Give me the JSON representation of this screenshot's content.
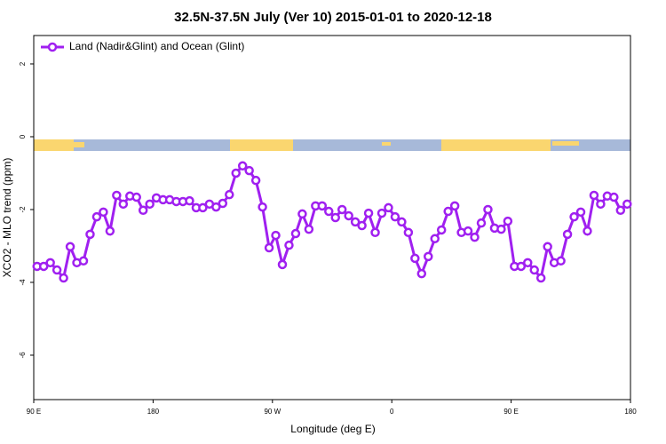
{
  "chart_data": {
    "type": "line",
    "title": "32.5N-37.5N July (Ver 10)   2015-01-01 to 2020-12-18",
    "x_label": "Longitude (deg E)",
    "y_label": "XCO2 - MLO trend (ppm)",
    "xlim": [
      90,
      540
    ],
    "xticks": [
      {
        "value": 90,
        "label": "90 E"
      },
      {
        "value": 180,
        "label": "180"
      },
      {
        "value": 270,
        "label": "90 W"
      },
      {
        "value": 360,
        "label": "0"
      },
      {
        "value": 450,
        "label": "90 E"
      },
      {
        "value": 540,
        "label": "180"
      }
    ],
    "ylim": [
      -7.22,
      2.78
    ],
    "yticks": [
      2,
      0,
      -2,
      -4,
      -6
    ],
    "legend": "top-left",
    "x": [
      92.5,
      97.5,
      102.5,
      107.5,
      112.5,
      117.5,
      122.5,
      127.5,
      132.5,
      137.5,
      142.5,
      147.5,
      152.5,
      157.5,
      162.5,
      167.5,
      172.5,
      177.5,
      182.5,
      187.5,
      192.5,
      197.5,
      202.5,
      207.5,
      212.5,
      217.5,
      222.5,
      227.5,
      232.5,
      237.5,
      242.5,
      247.5,
      252.5,
      257.5,
      262.5,
      267.5,
      272.5,
      277.5,
      282.5,
      287.5,
      292.5,
      297.5,
      302.5,
      307.5,
      312.5,
      317.5,
      322.5,
      327.5,
      332.5,
      337.5,
      342.5,
      347.5,
      352.5,
      357.5,
      362.5,
      367.5,
      372.5,
      377.5,
      382.5,
      387.5,
      392.5,
      397.5,
      402.5,
      407.5,
      412.5,
      417.5,
      422.5,
      427.5,
      432.5,
      437.5,
      442.5,
      447.5,
      452.5,
      457.5,
      462.5,
      467.5,
      472.5,
      477.5,
      482.5,
      487.5,
      492.5,
      497.5,
      502.5,
      507.5,
      512.5,
      517.5,
      522.5,
      527.5,
      532.5,
      537.5
    ],
    "series": [
      {
        "name": "Land (Nadir&Glint) and Ocean (Glint)",
        "color": "#a020f0",
        "values": [
          -3.56,
          -3.56,
          -3.46,
          -3.66,
          -3.88,
          -3.02,
          -3.46,
          -3.41,
          -2.68,
          -2.2,
          -2.07,
          -2.59,
          -1.61,
          -1.85,
          -1.63,
          -1.66,
          -2.02,
          -1.85,
          -1.68,
          -1.73,
          -1.73,
          -1.78,
          -1.78,
          -1.76,
          -1.95,
          -1.95,
          -1.85,
          -1.93,
          -1.83,
          -1.59,
          -1.0,
          -0.8,
          -0.93,
          -1.2,
          -1.93,
          -3.05,
          -2.71,
          -3.51,
          -2.98,
          -2.66,
          -2.12,
          -2.54,
          -1.9,
          -1.9,
          -2.05,
          -2.22,
          -2.0,
          -2.17,
          -2.34,
          -2.44,
          -2.1,
          -2.63,
          -2.1,
          -1.95,
          -2.2,
          -2.34,
          -2.63,
          -3.34,
          -3.76,
          -3.29,
          -2.8,
          -2.56,
          -2.05,
          -1.9,
          -2.63,
          -2.59,
          -2.76,
          -2.37,
          -2.0,
          -2.51,
          -2.54,
          -2.32,
          -3.56,
          -3.56,
          -3.46,
          -3.66,
          -3.88,
          -3.02,
          -3.46,
          -3.41,
          -2.68,
          -2.2,
          -2.07,
          -2.59,
          -1.61,
          -1.85,
          -1.63,
          -1.66,
          -2.02,
          -1.85
        ]
      }
    ]
  }
}
